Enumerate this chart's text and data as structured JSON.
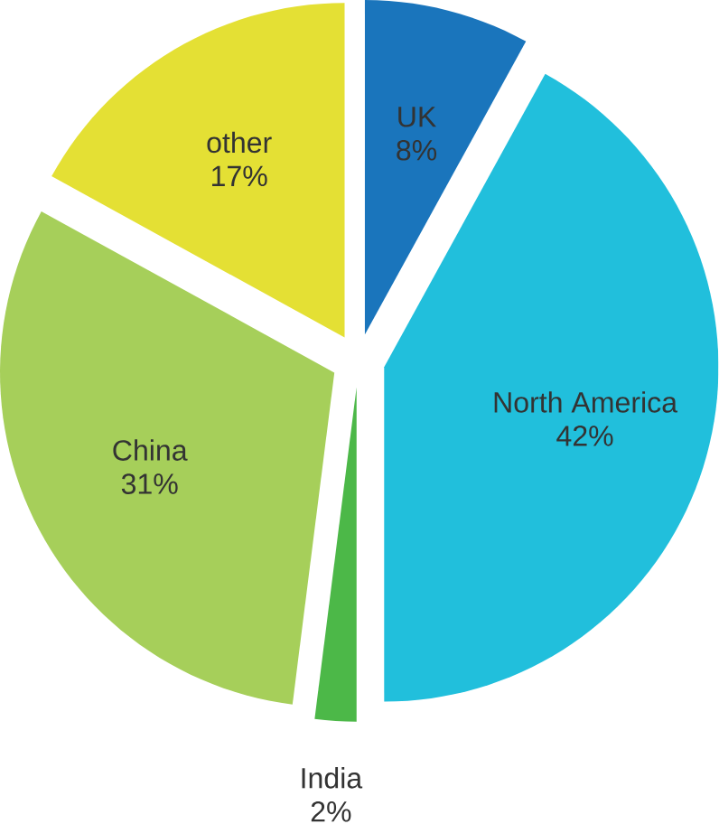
{
  "chart_data": {
    "type": "pie",
    "categories": [
      "UK",
      "North America",
      "India",
      "China",
      "other"
    ],
    "values": [
      8,
      42,
      2,
      31,
      17
    ],
    "value_labels": [
      "8%",
      "42%",
      "2%",
      "31%",
      "17%"
    ],
    "colors": [
      "#1a75bc",
      "#21bfdc",
      "#4cb848",
      "#a6cf5a",
      "#e4e034"
    ]
  }
}
